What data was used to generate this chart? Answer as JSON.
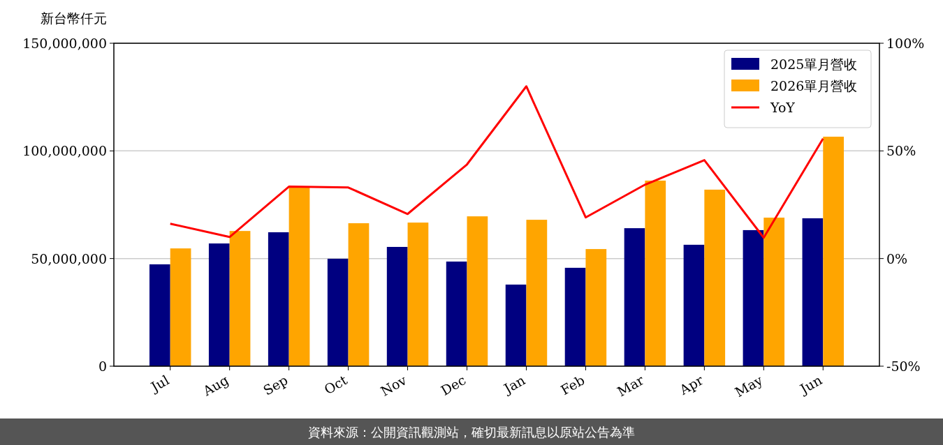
{
  "chart_data": {
    "type": "bar",
    "ylabel": "新台幣仟元",
    "categories": [
      "Jul",
      "Aug",
      "Sep",
      "Oct",
      "Nov",
      "Dec",
      "Jan",
      "Feb",
      "Mar",
      "Apr",
      "May",
      "Jun"
    ],
    "series": [
      {
        "name": "2025單月營收",
        "color": "#000080",
        "values": [
          47300000,
          57000000,
          62200000,
          49900000,
          55400000,
          48600000,
          37900000,
          45700000,
          64100000,
          56400000,
          63200000,
          68700000
        ]
      },
      {
        "name": "2026單月營收",
        "color": "#ffa500",
        "values": [
          54700000,
          62800000,
          83300000,
          66400000,
          66700000,
          69600000,
          68000000,
          54400000,
          86200000,
          82000000,
          69000000,
          106600000
        ]
      },
      {
        "name": "YoY",
        "type": "line",
        "axis": "y2",
        "color": "#ff0000",
        "values": [
          16.2,
          10.0,
          33.4,
          33.0,
          20.7,
          43.7,
          80.0,
          19.1,
          34.3,
          45.7,
          9.7,
          55.7
        ]
      }
    ],
    "ylim": [
      0,
      150000000
    ],
    "yticks": [
      {
        "value": 0,
        "label": "0"
      },
      {
        "value": 50000000,
        "label": "50,000,000"
      },
      {
        "value": 100000000,
        "label": "100,000,000"
      },
      {
        "value": 150000000,
        "label": "150,000,000"
      }
    ],
    "y2lim": [
      -50,
      100
    ],
    "y2ticks": [
      {
        "value": -50,
        "label": "-50%"
      },
      {
        "value": 0,
        "label": "0%"
      },
      {
        "value": 50,
        "label": "50%"
      },
      {
        "value": 100,
        "label": "100%"
      }
    ],
    "grid": "y",
    "legend": "top right",
    "line_style": "solid",
    "annotations": [
      "資料來源：公開資訊觀測站，確切最新訊息以原站公告為準"
    ]
  }
}
